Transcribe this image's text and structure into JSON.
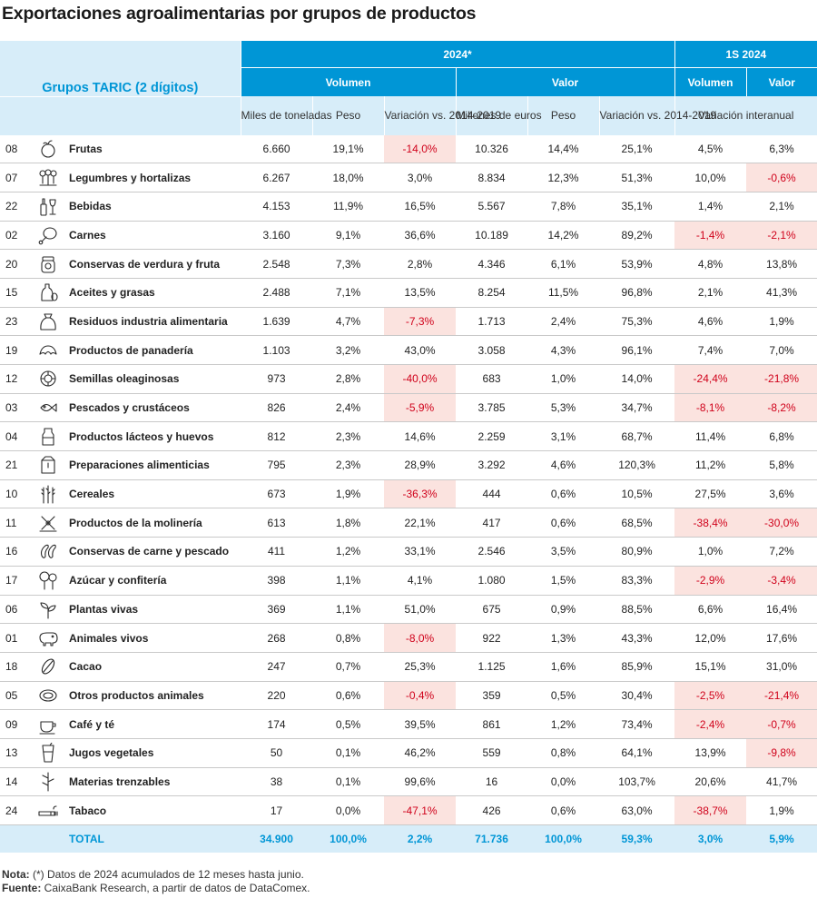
{
  "chart_data": {
    "type": "table",
    "title": "Exportaciones agroalimentarias por grupos de productos",
    "header": {
      "group_col": "Grupos TARIC (2 dígitos)",
      "period_2024": "2024*",
      "period_1s": "1S 2024",
      "volumen": "Volumen",
      "valor": "Valor",
      "volumen_1s": "Volumen",
      "valor_1s": "Valor",
      "miles": "Miles de toneladas",
      "peso_v": "Peso",
      "var_v": "Variación vs. 2014-2019",
      "millones": "Millones de euros",
      "peso_val": "Peso",
      "var_val": "Variación vs. 2014-2019",
      "interanual": "Variación interanual"
    },
    "rows": [
      {
        "code": "08",
        "icon": "apple-icon",
        "name": "Frutas",
        "vol": "6.660",
        "peso_vol": "19,1%",
        "var_vol": "-14,0%",
        "valor": "10.326",
        "peso_val": "14,4%",
        "var_val": "25,1%",
        "ia_vol": "4,5%",
        "ia_val": "6,3%"
      },
      {
        "code": "07",
        "icon": "vegetables-icon",
        "name": "Legumbres y hortalizas",
        "vol": "6.267",
        "peso_vol": "18,0%",
        "var_vol": "3,0%",
        "valor": "8.834",
        "peso_val": "12,3%",
        "var_val": "51,3%",
        "ia_vol": "10,0%",
        "ia_val": "-0,6%"
      },
      {
        "code": "22",
        "icon": "bottle-icon",
        "name": "Bebidas",
        "vol": "4.153",
        "peso_vol": "11,9%",
        "var_vol": "16,5%",
        "valor": "5.567",
        "peso_val": "7,8%",
        "var_val": "35,1%",
        "ia_vol": "1,4%",
        "ia_val": "2,1%"
      },
      {
        "code": "02",
        "icon": "meat-icon",
        "name": "Carnes",
        "vol": "3.160",
        "peso_vol": "9,1%",
        "var_vol": "36,6%",
        "valor": "10.189",
        "peso_val": "14,2%",
        "var_val": "89,2%",
        "ia_vol": "-1,4%",
        "ia_val": "-2,1%"
      },
      {
        "code": "20",
        "icon": "jar-icon",
        "name": "Conservas de verdura y fruta",
        "vol": "2.548",
        "peso_vol": "7,3%",
        "var_vol": "2,8%",
        "valor": "4.346",
        "peso_val": "6,1%",
        "var_val": "53,9%",
        "ia_vol": "4,8%",
        "ia_val": "13,8%"
      },
      {
        "code": "15",
        "icon": "oil-icon",
        "name": "Aceites y grasas",
        "vol": "2.488",
        "peso_vol": "7,1%",
        "var_vol": "13,5%",
        "valor": "8.254",
        "peso_val": "11,5%",
        "var_val": "96,8%",
        "ia_vol": "2,1%",
        "ia_val": "41,3%"
      },
      {
        "code": "23",
        "icon": "sack-icon",
        "name": "Residuos industria alimentaria",
        "vol": "1.639",
        "peso_vol": "4,7%",
        "var_vol": "-7,3%",
        "valor": "1.713",
        "peso_val": "2,4%",
        "var_val": "75,3%",
        "ia_vol": "4,6%",
        "ia_val": "1,9%"
      },
      {
        "code": "19",
        "icon": "croissant-icon",
        "name": "Productos de panadería",
        "vol": "1.103",
        "peso_vol": "3,2%",
        "var_vol": "43,0%",
        "valor": "3.058",
        "peso_val": "4,3%",
        "var_val": "96,1%",
        "ia_vol": "7,4%",
        "ia_val": "7,0%"
      },
      {
        "code": "12",
        "icon": "sunflower-icon",
        "name": "Semillas oleaginosas",
        "vol": "973",
        "peso_vol": "2,8%",
        "var_vol": "-40,0%",
        "valor": "683",
        "peso_val": "1,0%",
        "var_val": "14,0%",
        "ia_vol": "-24,4%",
        "ia_val": "-21,8%"
      },
      {
        "code": "03",
        "icon": "fish-icon",
        "name": "Pescados y crustáceos",
        "vol": "826",
        "peso_vol": "2,4%",
        "var_vol": "-5,9%",
        "valor": "3.785",
        "peso_val": "5,3%",
        "var_val": "34,7%",
        "ia_vol": "-8,1%",
        "ia_val": "-8,2%"
      },
      {
        "code": "04",
        "icon": "milk-icon",
        "name": "Productos lácteos y huevos",
        "vol": "812",
        "peso_vol": "2,3%",
        "var_vol": "14,6%",
        "valor": "2.259",
        "peso_val": "3,1%",
        "var_val": "68,7%",
        "ia_vol": "11,4%",
        "ia_val": "6,8%"
      },
      {
        "code": "21",
        "icon": "box-icon",
        "name": "Preparaciones alimenticias",
        "vol": "795",
        "peso_vol": "2,3%",
        "var_vol": "28,9%",
        "valor": "3.292",
        "peso_val": "4,6%",
        "var_val": "120,3%",
        "ia_vol": "11,2%",
        "ia_val": "5,8%"
      },
      {
        "code": "10",
        "icon": "wheat-icon",
        "name": "Cereales",
        "vol": "673",
        "peso_vol": "1,9%",
        "var_vol": "-36,3%",
        "valor": "444",
        "peso_val": "0,6%",
        "var_val": "10,5%",
        "ia_vol": "27,5%",
        "ia_val": "3,6%"
      },
      {
        "code": "11",
        "icon": "mill-icon",
        "name": "Productos de la molinería",
        "vol": "613",
        "peso_vol": "1,8%",
        "var_vol": "22,1%",
        "valor": "417",
        "peso_val": "0,6%",
        "var_val": "68,5%",
        "ia_vol": "-38,4%",
        "ia_val": "-30,0%"
      },
      {
        "code": "16",
        "icon": "sausage-icon",
        "name": "Conservas de carne y pescado",
        "vol": "411",
        "peso_vol": "1,2%",
        "var_vol": "33,1%",
        "valor": "2.546",
        "peso_val": "3,5%",
        "var_val": "80,9%",
        "ia_vol": "1,0%",
        "ia_val": "7,2%"
      },
      {
        "code": "17",
        "icon": "lollipop-icon",
        "name": "Azúcar y confitería",
        "vol": "398",
        "peso_vol": "1,1%",
        "var_vol": "4,1%",
        "valor": "1.080",
        "peso_val": "1,5%",
        "var_val": "83,3%",
        "ia_vol": "-2,9%",
        "ia_val": "-3,4%"
      },
      {
        "code": "06",
        "icon": "plant-icon",
        "name": "Plantas vivas",
        "vol": "369",
        "peso_vol": "1,1%",
        "var_vol": "51,0%",
        "valor": "675",
        "peso_val": "0,9%",
        "var_val": "88,5%",
        "ia_vol": "6,6%",
        "ia_val": "16,4%"
      },
      {
        "code": "01",
        "icon": "pig-icon",
        "name": "Animales vivos",
        "vol": "268",
        "peso_vol": "0,8%",
        "var_vol": "-8,0%",
        "valor": "922",
        "peso_val": "1,3%",
        "var_val": "43,3%",
        "ia_vol": "12,0%",
        "ia_val": "17,6%"
      },
      {
        "code": "18",
        "icon": "cocoa-icon",
        "name": "Cacao",
        "vol": "247",
        "peso_vol": "0,7%",
        "var_vol": "25,3%",
        "valor": "1.125",
        "peso_val": "1,6%",
        "var_val": "85,9%",
        "ia_vol": "15,1%",
        "ia_val": "31,0%"
      },
      {
        "code": "05",
        "icon": "steak-icon",
        "name": "Otros productos animales",
        "vol": "220",
        "peso_vol": "0,6%",
        "var_vol": "-0,4%",
        "valor": "359",
        "peso_val": "0,5%",
        "var_val": "30,4%",
        "ia_vol": "-2,5%",
        "ia_val": "-21,4%"
      },
      {
        "code": "09",
        "icon": "coffee-icon",
        "name": "Café y té",
        "vol": "174",
        "peso_vol": "0,5%",
        "var_vol": "39,5%",
        "valor": "861",
        "peso_val": "1,2%",
        "var_val": "73,4%",
        "ia_vol": "-2,4%",
        "ia_val": "-0,7%"
      },
      {
        "code": "13",
        "icon": "juice-icon",
        "name": "Jugos vegetales",
        "vol": "50",
        "peso_vol": "0,1%",
        "var_vol": "46,2%",
        "valor": "559",
        "peso_val": "0,8%",
        "var_val": "64,1%",
        "ia_vol": "13,9%",
        "ia_val": "-9,8%"
      },
      {
        "code": "14",
        "icon": "reed-icon",
        "name": "Materias trenzables",
        "vol": "38",
        "peso_vol": "0,1%",
        "var_vol": "99,6%",
        "valor": "16",
        "peso_val": "0,0%",
        "var_val": "103,7%",
        "ia_vol": "20,6%",
        "ia_val": "41,7%"
      },
      {
        "code": "24",
        "icon": "cigarette-icon",
        "name": "Tabaco",
        "vol": "17",
        "peso_vol": "0,0%",
        "var_vol": "-47,1%",
        "valor": "426",
        "peso_val": "0,6%",
        "var_val": "63,0%",
        "ia_vol": "-38,7%",
        "ia_val": "1,9%"
      }
    ],
    "total": {
      "name": "TOTAL",
      "vol": "34.900",
      "peso_vol": "100,0%",
      "var_vol": "2,2%",
      "valor": "71.736",
      "peso_val": "100,0%",
      "var_val": "59,3%",
      "ia_vol": "3,0%",
      "ia_val": "5,9%"
    },
    "colors": {
      "header": "#0096d6",
      "subheader": "#d7edf9",
      "negative_bg": "#fbe3df",
      "negative_text": "#d0021b"
    }
  },
  "notes": {
    "nota_label": "Nota:",
    "nota_text": " (*) Datos de 2024 acumulados de 12 meses hasta junio.",
    "fuente_label": "Fuente:",
    "fuente_text": " CaixaBank Research, a partir de datos de DataComex."
  }
}
